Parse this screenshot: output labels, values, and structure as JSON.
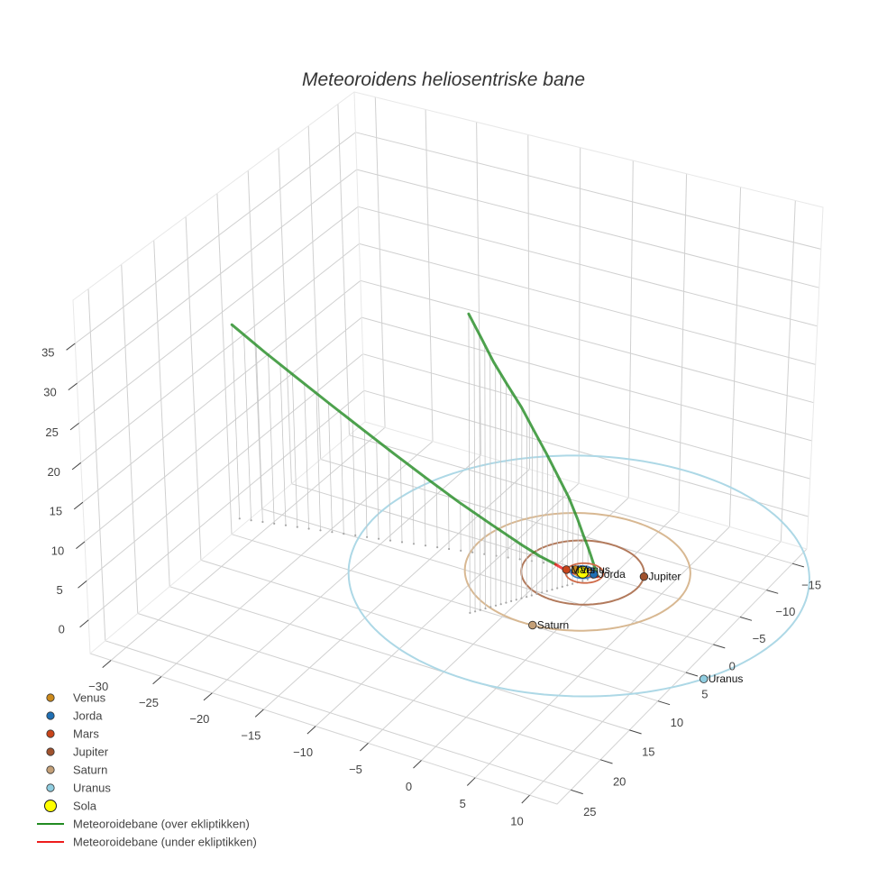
{
  "chart_data": {
    "type": "scatter3d",
    "title": "Meteoroidens heliosentriske bane",
    "axes": {
      "x": {
        "label": "",
        "range": [
          -32.1,
          12.5
        ],
        "ticks": [
          -30,
          -25,
          -20,
          -15,
          -10,
          -5,
          0,
          5,
          10
        ],
        "tick_labels": [
          "−30",
          "−25",
          "−20",
          "−15",
          "−10",
          "−5",
          "0",
          "5",
          "10"
        ]
      },
      "y": {
        "label": "",
        "range": [
          -17.8,
          27.3
        ],
        "ticks": [
          -15,
          -10,
          -5,
          0,
          5,
          10,
          15,
          20,
          25
        ],
        "tick_labels": [
          "−15",
          "−10",
          "−5",
          "0",
          "5",
          "10",
          "15",
          "20",
          "25"
        ]
      },
      "z": {
        "label": "",
        "range": [
          -4.3,
          40.4
        ],
        "ticks": [
          0,
          5,
          10,
          15,
          20,
          25,
          30,
          35
        ],
        "tick_labels": [
          "0",
          "5",
          "10",
          "15",
          "20",
          "25",
          "30",
          "35"
        ]
      }
    },
    "grid": true,
    "legend_position": "bottom-left",
    "style": {
      "grid_color": "#d0d0d0",
      "edge_color": "#e8e8e8",
      "tick_color": "#444444"
    },
    "bodies": [
      {
        "name": "Venus",
        "label": "Venus",
        "color": "#cc8a1c",
        "position": [
          -0.72,
          -0.06,
          0
        ],
        "orbit": {
          "center": [
            0,
            0
          ],
          "radius": 0.72,
          "color": "#d8922e",
          "width": 1.8
        }
      },
      {
        "name": "Jorda",
        "label": "Jorda",
        "color": "#1f6fb4",
        "position": [
          0.98,
          -0.18,
          0
        ],
        "orbit": {
          "center": [
            0,
            0
          ],
          "radius": 1.0,
          "color": "#3b82c4",
          "width": 1.8
        }
      },
      {
        "name": "Mars",
        "label": "Mars",
        "color": "#c8441a",
        "position": [
          -1.39,
          0.33,
          0
        ],
        "orbit": {
          "center": [
            0.2,
            0.05
          ],
          "radius": 1.6,
          "color": "#cf6a48",
          "width": 1.8
        }
      },
      {
        "name": "Jupiter",
        "label": "Jupiter",
        "color": "#a0522d",
        "position": [
          4.83,
          -1.95,
          0
        ],
        "orbit": {
          "center": [
            0,
            0
          ],
          "radius": 5.2,
          "color": "#b27a5c",
          "width": 2
        }
      },
      {
        "name": "Saturn",
        "label": "Saturn",
        "color": "#c4a078",
        "position": [
          0.4,
          9.5,
          0
        ],
        "orbit": {
          "center": [
            -0.5,
            0
          ],
          "radius": 9.55,
          "color": "#d8b892",
          "width": 2
        }
      },
      {
        "name": "Uranus",
        "label": "Uranus",
        "color": "#8fcde0",
        "position": [
          16.5,
          9.75,
          0
        ],
        "orbit": {
          "center": [
            -0.4,
            0
          ],
          "radius": 19.5,
          "color": "#add8e6",
          "width": 2
        }
      }
    ],
    "sun": {
      "name": "Sola",
      "color": "#ffff00",
      "position": [
        0,
        0,
        0
      ]
    },
    "meteoroid": {
      "opacity": 0.8,
      "above": {
        "name": "Meteoroidebane (over ekliptikken)",
        "color": "#228b22",
        "segments": [
          [
            [
              -29.9,
              7.0,
              25.4
            ],
            [
              -27.17,
              6.3,
              22.4
            ],
            [
              -24.44,
              5.61,
              19.6
            ],
            [
              -21.71,
              4.91,
              16.8
            ],
            [
              -18.98,
              4.22,
              14.1
            ],
            [
              -16.25,
              3.52,
              11.4
            ],
            [
              -13.52,
              2.82,
              8.8
            ],
            [
              -10.79,
              2.13,
              6.3
            ],
            [
              -8.06,
              1.43,
              4.0
            ],
            [
              -5.33,
              0.74,
              1.8
            ],
            [
              -3.97,
              0.39,
              0.8
            ],
            [
              -2.6,
              0.04,
              0.0
            ]
          ],
          [
            [
              1.45,
              0.0,
              0.0
            ],
            [
              1.24,
              0.34,
              1.7
            ],
            [
              1.08,
              0.59,
              3.0
            ],
            [
              0.93,
              0.84,
              4.2
            ],
            [
              0.7,
              1.2,
              5.8
            ],
            [
              0.37,
              1.74,
              8.3
            ],
            [
              -0.07,
              2.44,
              11.3
            ],
            [
              -0.69,
              3.44,
              14.8
            ],
            [
              -1.23,
              4.29,
              17.8
            ],
            [
              -1.85,
              5.28,
              21.1
            ],
            [
              -2.47,
              6.28,
              24.5
            ],
            [
              -3.19,
              7.43,
              27.9
            ],
            [
              -3.86,
              8.5,
              31.2
            ],
            [
              -4.44,
              9.43,
              34.5
            ],
            [
              -5.06,
              10.43,
              38.0
            ]
          ]
        ]
      },
      "below": {
        "name": "Meteoroidebane (under ekliptikken)",
        "color": "#ee1c1c",
        "segments": [
          [
            [
              -2.6,
              0.04,
              0.0
            ],
            [
              -2.0,
              0.05,
              -0.22
            ],
            [
              -1.4,
              0.05,
              -0.38
            ],
            [
              -0.7,
              0.02,
              -0.48
            ],
            [
              0.0,
              -0.03,
              -0.46
            ],
            [
              0.7,
              -0.05,
              -0.34
            ],
            [
              1.15,
              -0.03,
              -0.17
            ],
            [
              1.45,
              0.0,
              0.0
            ]
          ]
        ]
      }
    },
    "drop_lines": {
      "color": "#c6c6c6",
      "dot_color": "#a6a6a6",
      "counts": [
        28,
        26
      ]
    }
  },
  "legend": {
    "items": [
      {
        "label": "Venus"
      },
      {
        "label": "Jorda"
      },
      {
        "label": "Mars"
      },
      {
        "label": "Jupiter"
      },
      {
        "label": "Saturn"
      },
      {
        "label": "Uranus"
      },
      {
        "label": "Sola"
      },
      {
        "label": "Meteoroidebane (over ekliptikken)"
      },
      {
        "label": "Meteoroidebane (under ekliptikken)"
      }
    ]
  }
}
